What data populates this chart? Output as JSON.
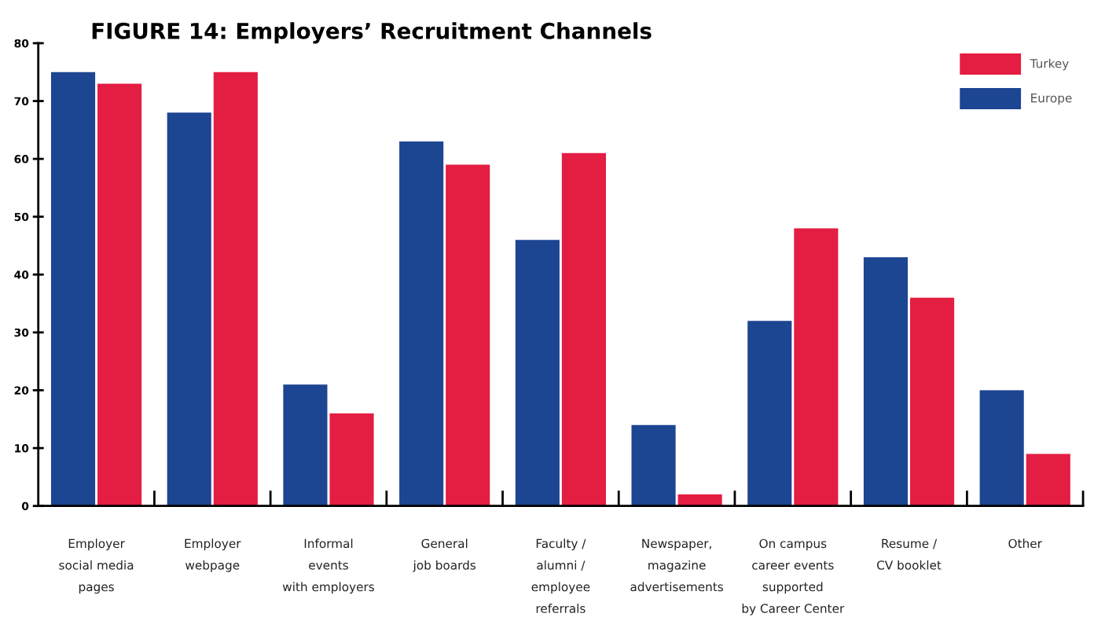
{
  "chart_data": {
    "type": "bar",
    "title": "FIGURE 14: Employers’ Recruitment Channels",
    "categories": [
      "Employer\nsocial media\npages",
      "Employer\nwebpage",
      "Informal\nevents\nwith employers",
      "General\njob boards",
      "Faculty /\nalumni /\nemployee\nreferrals",
      "Newspaper,\nmagazine\nadvertisements",
      "On campus\ncareer events\nsupported\nby Career Center",
      "Resume /\nCV booklet",
      "Other"
    ],
    "series": [
      {
        "name": "Europe",
        "color": "#1c4592",
        "values": [
          75,
          68,
          21,
          63,
          46,
          14,
          32,
          43,
          20
        ]
      },
      {
        "name": "Turkey",
        "color": "#e41d42",
        "values": [
          73,
          75,
          16,
          59,
          61,
          2,
          48,
          36,
          9
        ]
      }
    ],
    "ylim": [
      0,
      80
    ],
    "yticks": [
      0,
      10,
      20,
      30,
      40,
      50,
      60,
      70,
      80
    ],
    "grid": false,
    "legend": "top right"
  }
}
